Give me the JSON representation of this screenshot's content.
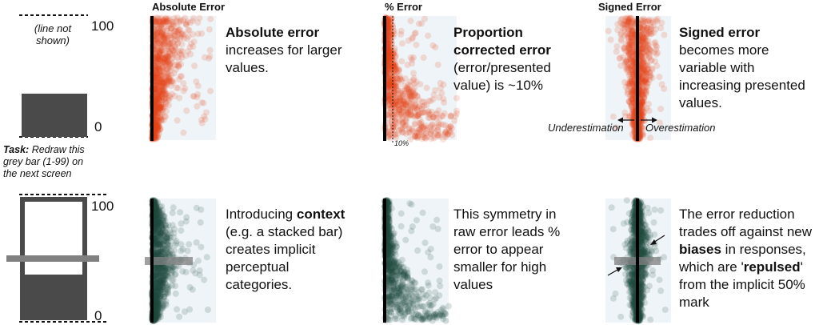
{
  "colors": {
    "orange": "#e8461a",
    "teal": "#1e4a3e",
    "panel_bg": "#eef4f7",
    "stimulus_bar": "#4a4a4a",
    "context_bar": "#808080"
  },
  "stimulus": {
    "top_label": "100",
    "bottom_label": "0",
    "line_note": "(line not shown)",
    "task_label": "Task:",
    "task_text": "Redraw this grey bar (1-99) on the next screen",
    "top_label_2": "100",
    "bottom_label_2": "0"
  },
  "titles": {
    "absolute": "Absolute Error",
    "percent": "% Error",
    "signed": "Signed Error"
  },
  "annotations": {
    "ten_percent": "10%",
    "under": "Underestimation",
    "over": "Overestimation"
  },
  "notes": {
    "n1": {
      "b": "Absolute error",
      "t": "increases for larger values."
    },
    "n2": {
      "b": "Proportion corrected error",
      "t": "(error/presented value) is ~10%"
    },
    "n3": {
      "b": "Signed error",
      "t": "becomes more variable with increasing presented values."
    },
    "n4": {
      "pre": "Introducing",
      "b": "context",
      "t": "(e.g. a stacked bar) creates implicit perceptual categories."
    },
    "n5": {
      "t": "This symmetry in raw error leads % error to appear smaller for high values"
    },
    "n6": {
      "pre": "The error reduction trades off against new",
      "b1": "biases",
      "mid": "in responses, which are '",
      "b2": "repulsed",
      "post": "' from the implicit 50% mark"
    }
  },
  "chart_data": [
    {
      "type": "scatter",
      "panel": "top-absolute",
      "title": "Absolute Error",
      "color": "orange",
      "x_measure": "absolute error",
      "y_range": [
        0,
        100
      ]
    },
    {
      "type": "scatter",
      "panel": "top-percent",
      "title": "% Error",
      "color": "orange",
      "x_measure": "percent error",
      "reference_line": 10,
      "y_range": [
        0,
        100
      ]
    },
    {
      "type": "scatter",
      "panel": "top-signed",
      "title": "Signed Error",
      "color": "orange",
      "x_measure": "signed error",
      "y_range": [
        0,
        100
      ]
    },
    {
      "type": "scatter",
      "panel": "bottom-absolute",
      "color": "teal",
      "x_measure": "absolute error",
      "y_range": [
        0,
        100
      ]
    },
    {
      "type": "scatter",
      "panel": "bottom-percent",
      "color": "teal",
      "x_measure": "percent error",
      "y_range": [
        0,
        100
      ]
    },
    {
      "type": "scatter",
      "panel": "bottom-signed",
      "color": "teal",
      "x_measure": "signed error",
      "y_range": [
        0,
        100
      ]
    }
  ]
}
